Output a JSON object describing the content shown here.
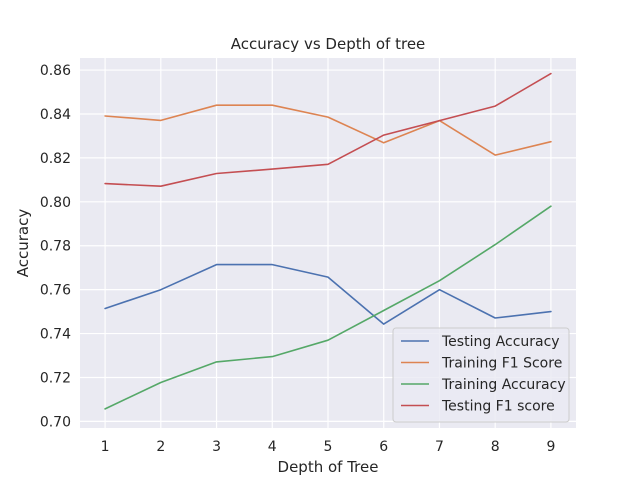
{
  "chart_data": {
    "type": "line",
    "title": "Accuracy vs Depth of tree",
    "xlabel": "Depth of Tree",
    "ylabel": "Accuracy",
    "x": [
      1,
      2,
      3,
      4,
      5,
      6,
      7,
      8,
      9
    ],
    "xlim": [
      0.55,
      9.45
    ],
    "ylim": [
      0.697,
      0.8655
    ],
    "yticks": [
      0.7,
      0.72,
      0.74,
      0.76,
      0.78,
      0.8,
      0.82,
      0.84,
      0.86
    ],
    "ytick_labels": [
      "0.70",
      "0.72",
      "0.74",
      "0.76",
      "0.78",
      "0.80",
      "0.82",
      "0.84",
      "0.86"
    ],
    "xticks": [
      1,
      2,
      3,
      4,
      5,
      6,
      7,
      8,
      9
    ],
    "xtick_labels": [
      "1",
      "2",
      "3",
      "4",
      "5",
      "6",
      "7",
      "8",
      "9"
    ],
    "grid": true,
    "legend_position": "lower right",
    "series": [
      {
        "name": "Testing Accuracy",
        "color": "#4c72b0",
        "values": [
          0.7514,
          0.76,
          0.7714,
          0.7714,
          0.7657,
          0.7443,
          0.76,
          0.7471,
          0.75
        ]
      },
      {
        "name": "Training F1 Score",
        "color": "#dd8452",
        "values": [
          0.8391,
          0.8371,
          0.844,
          0.844,
          0.8386,
          0.8269,
          0.837,
          0.8213,
          0.8274
        ]
      },
      {
        "name": "Training Accuracy",
        "color": "#55a868",
        "values": [
          0.7057,
          0.7177,
          0.7271,
          0.7295,
          0.737,
          0.7505,
          0.7641,
          0.7805,
          0.798
        ]
      },
      {
        "name": "Testing F1 score",
        "color": "#c44e52",
        "values": [
          0.8083,
          0.8071,
          0.8129,
          0.8149,
          0.8171,
          0.8304,
          0.837,
          0.8436,
          0.8584
        ]
      }
    ]
  }
}
